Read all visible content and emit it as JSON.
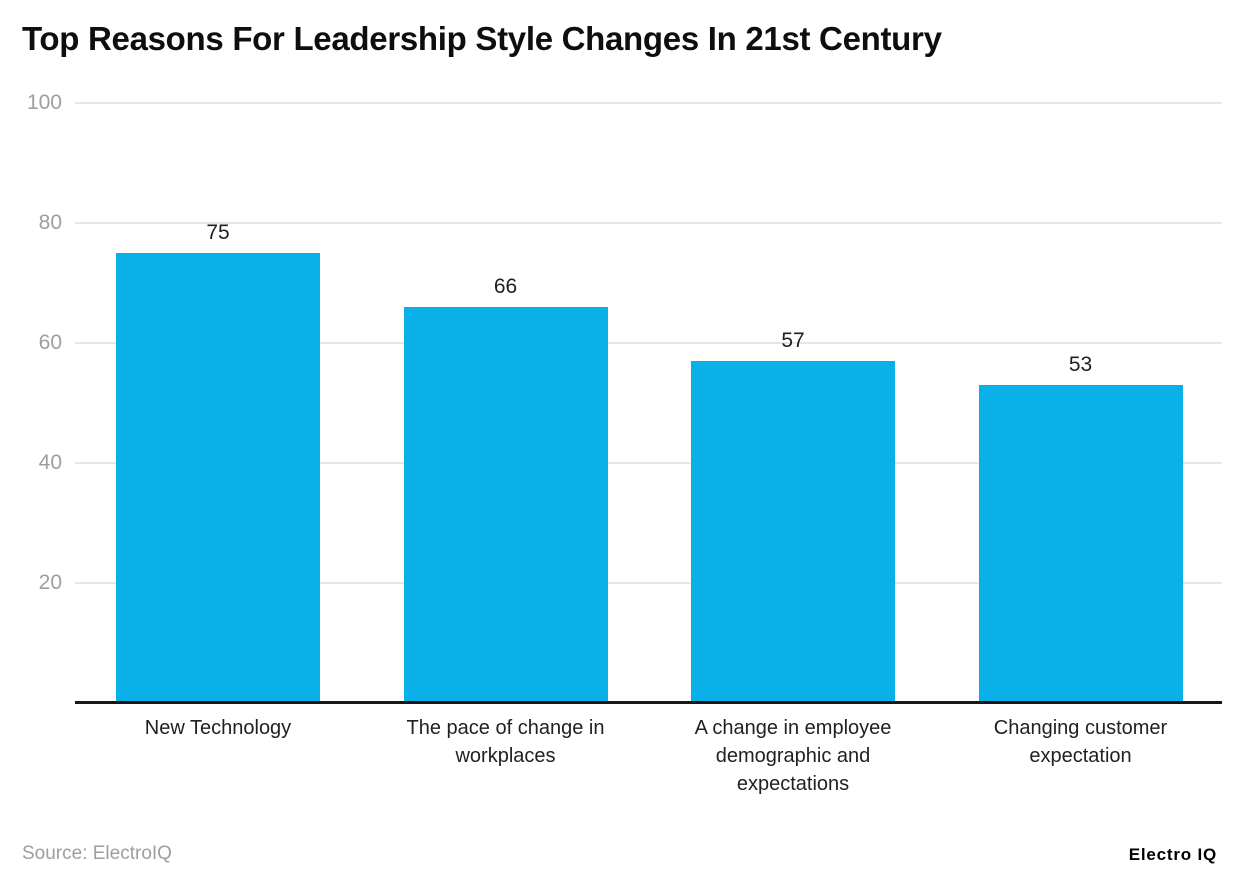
{
  "title": "Top Reasons For Leadership Style Changes In 21st Century",
  "footer": {
    "source_text": "Source: ElectroIQ",
    "brand_text": "Electro IQ"
  },
  "colors": {
    "bar": "#0AB1E8",
    "gridline": "#e7e7e7",
    "axis_line": "#181818",
    "ytick_label": "#9e9e9e",
    "title_text": "#0e0e0e",
    "value_label": "#1f1f1f",
    "category_label": "#212121",
    "source_text": "#9e9e9e",
    "background": "#ffffff"
  },
  "chart_data": {
    "type": "bar",
    "title": "Top Reasons For Leadership Style Changes In 21st Century",
    "categories": [
      "New Technology",
      "The pace of change in workplaces",
      "A change in employee demographic and expectations",
      "Changing customer expectation"
    ],
    "values": [
      75,
      66,
      57,
      53
    ],
    "xlabel": "",
    "ylabel": "",
    "ylim": [
      0,
      100
    ],
    "yticks": [
      20,
      40,
      60,
      80,
      100
    ],
    "grid": true,
    "legend": "none",
    "bar_color": "#0AB1E8",
    "value_labels_shown": true
  }
}
